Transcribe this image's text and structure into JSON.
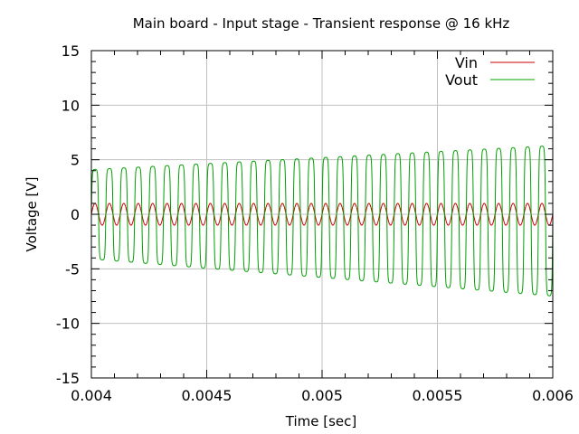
{
  "chart_data": {
    "type": "line",
    "title": "Main board - Input stage - Transient response @ 16 kHz",
    "xlabel": "Time [sec]",
    "ylabel": "Voltage [V]",
    "xlim": [
      0.004,
      0.006
    ],
    "ylim": [
      -15,
      15
    ],
    "xticks": [
      0.004,
      0.0045,
      0.005,
      0.0055,
      0.006
    ],
    "xtick_labels": [
      "0.004",
      "0.0045",
      "0.005",
      "0.0055",
      "0.006"
    ],
    "yticks": [
      -15,
      -10,
      -5,
      0,
      5,
      10,
      15
    ],
    "ytick_labels": [
      "-15",
      "-10",
      "-5",
      "0",
      "5",
      "10",
      "15"
    ],
    "grid": true,
    "legend_position": "top-right",
    "series": [
      {
        "name": "Vin",
        "color": "#cc0000",
        "waveform": "sine",
        "frequency_hz": 16000,
        "amplitude_start": 1.0,
        "amplitude_end": 1.0,
        "offset": 0
      },
      {
        "name": "Vout",
        "color": "#00a000",
        "waveform": "clipped sine",
        "frequency_hz": 16000,
        "amplitude_start": 4.1,
        "amplitude_end": 6.9,
        "offset_start": 0,
        "offset_end": -0.6
      }
    ]
  }
}
